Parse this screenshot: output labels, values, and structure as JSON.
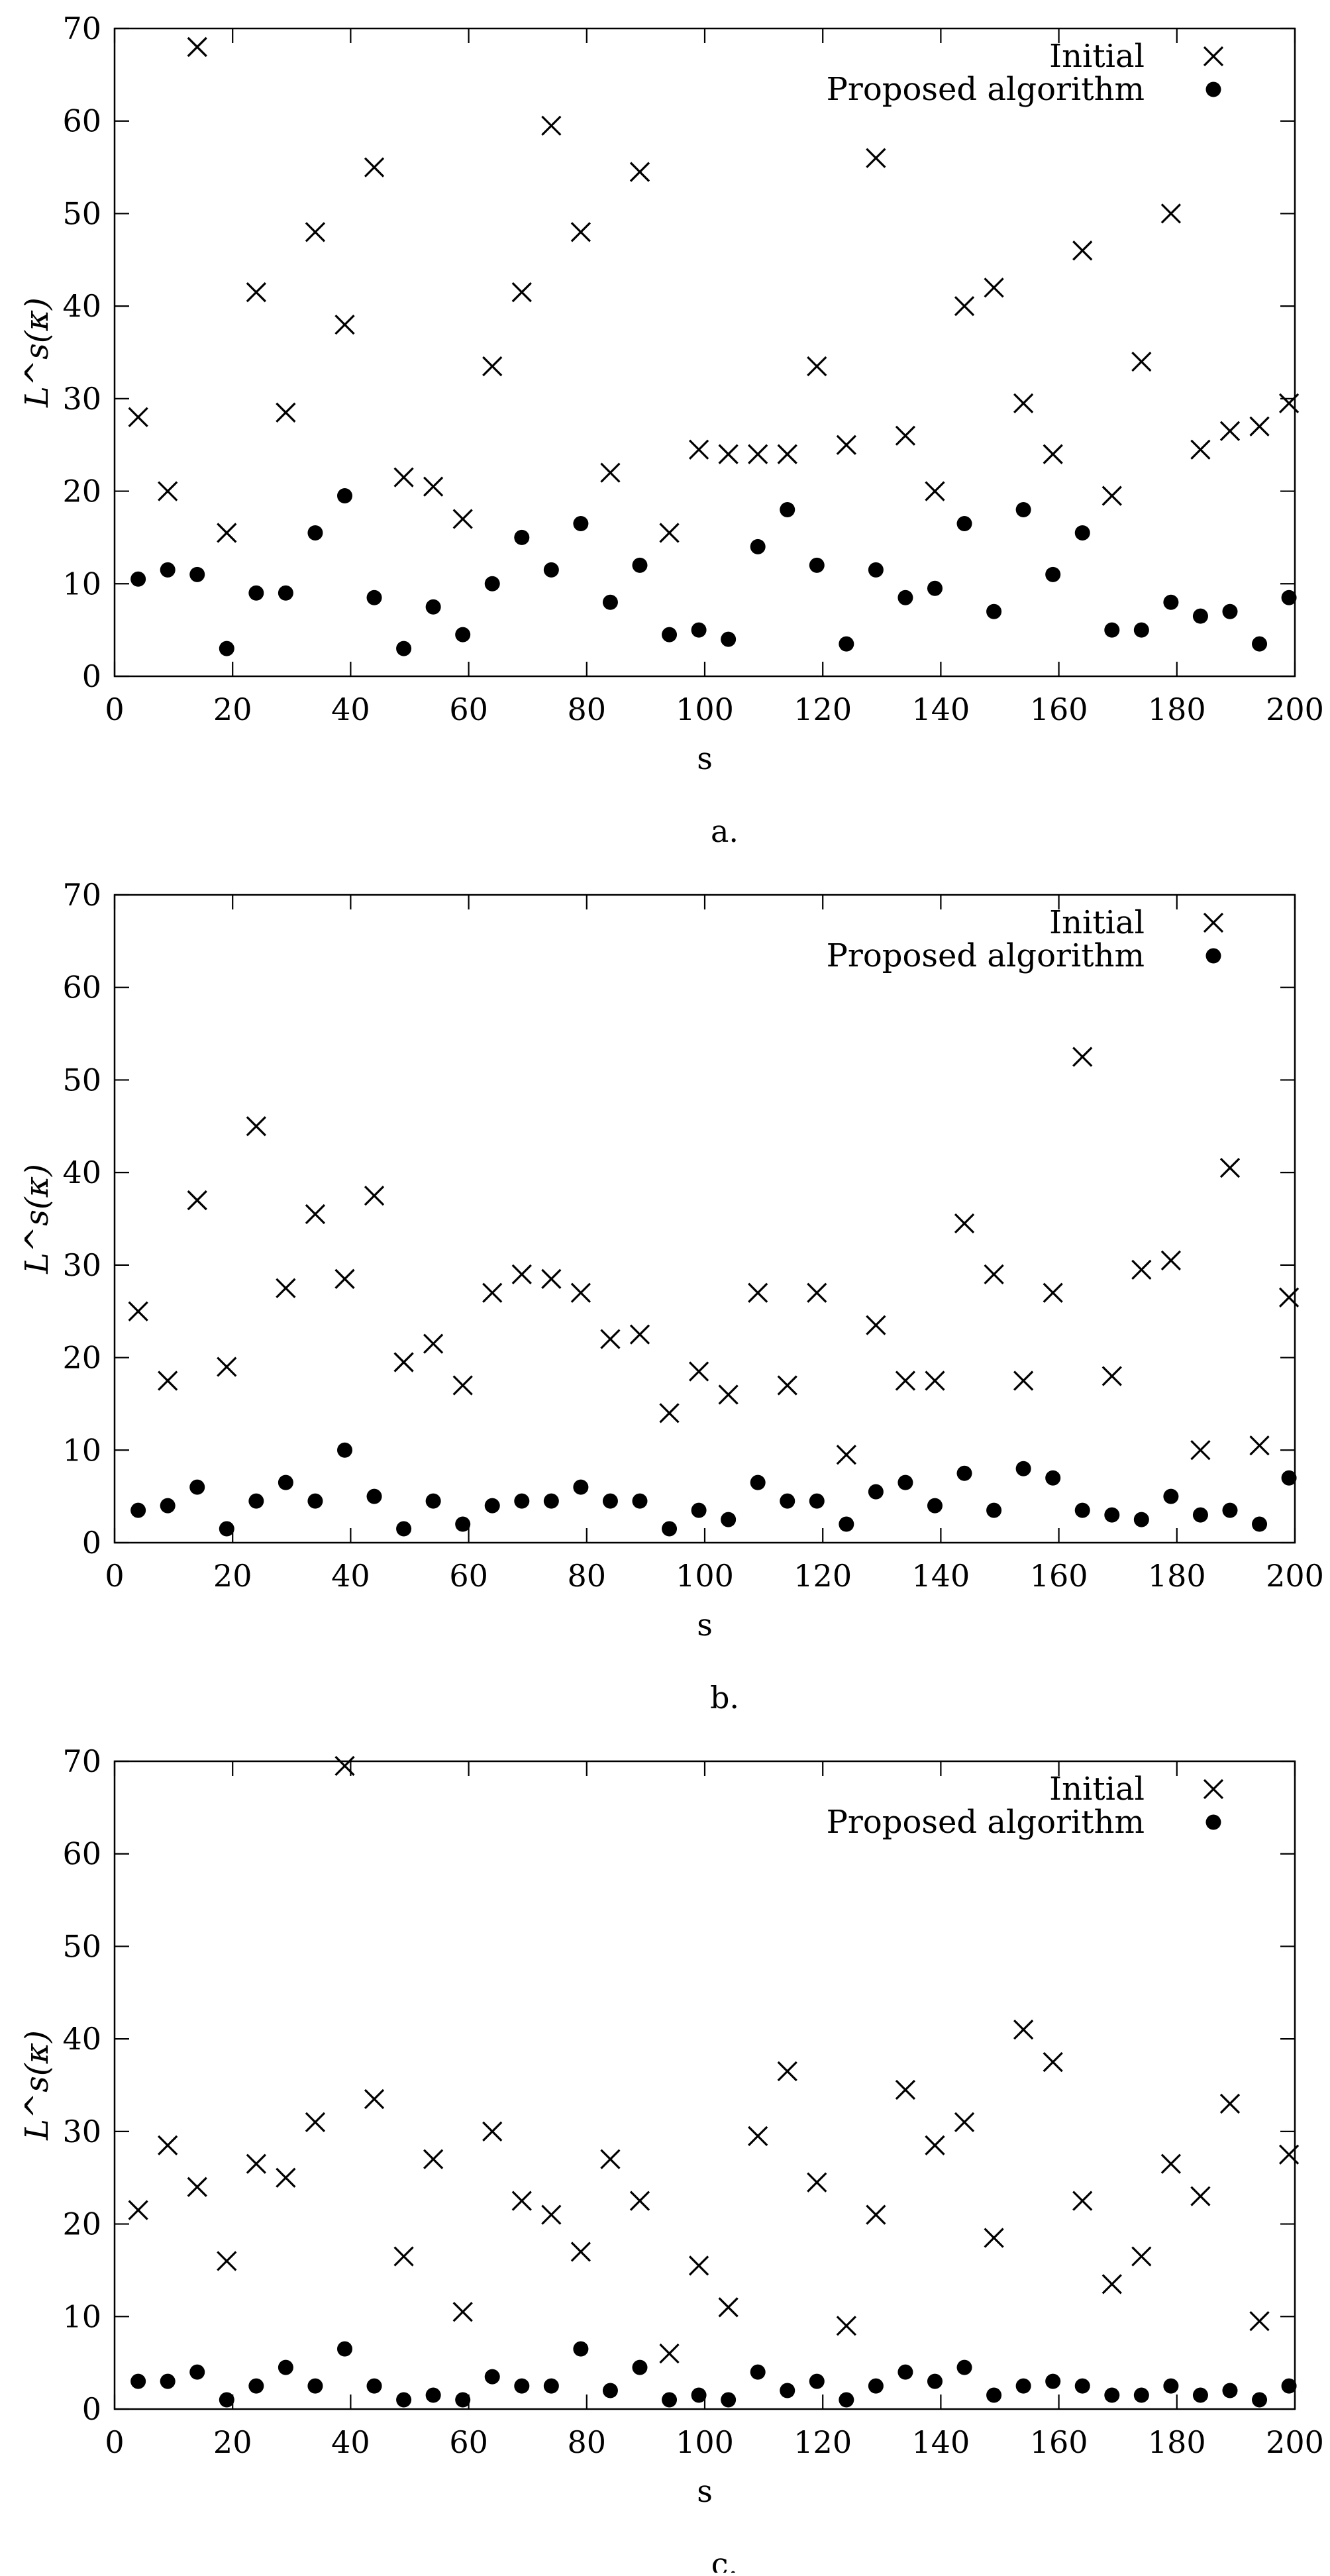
{
  "chart_data": [
    {
      "type": "scatter",
      "caption": "a.",
      "xlabel": "s",
      "ylabel": "L^s(κ)",
      "xlim": [
        0,
        200
      ],
      "ylim": [
        0,
        70
      ],
      "xticks": [
        0,
        20,
        40,
        60,
        80,
        100,
        120,
        140,
        160,
        180,
        200
      ],
      "yticks": [
        0,
        10,
        20,
        30,
        40,
        50,
        60,
        70
      ],
      "legend_position": "top-right",
      "x": [
        4,
        9,
        14,
        19,
        24,
        29,
        34,
        39,
        44,
        49,
        54,
        59,
        64,
        69,
        74,
        79,
        84,
        89,
        94,
        99,
        104,
        109,
        114,
        119,
        124,
        129,
        134,
        139,
        144,
        149,
        154,
        159,
        164,
        169,
        174,
        179,
        184,
        189,
        194,
        199
      ],
      "series": [
        {
          "name": "Initial",
          "marker": "cross",
          "values": [
            28,
            20,
            68,
            15.5,
            41.5,
            28.5,
            48,
            38,
            55,
            21.5,
            20.5,
            17,
            33.5,
            41.5,
            59.5,
            48,
            22,
            54.5,
            15.5,
            24.5,
            24,
            24,
            24,
            33.5,
            25,
            56,
            26,
            20,
            40,
            42,
            29.5,
            24,
            46,
            19.5,
            34,
            50,
            24.5,
            26.5,
            27,
            29.5
          ]
        },
        {
          "name": "Proposed algorithm",
          "marker": "dot",
          "values": [
            10.5,
            11.5,
            11,
            3,
            9,
            9,
            15.5,
            19.5,
            8.5,
            3,
            7.5,
            4.5,
            10,
            15,
            11.5,
            16.5,
            8,
            12,
            4.5,
            5,
            4,
            14,
            18,
            12,
            3.5,
            11.5,
            8.5,
            9.5,
            16.5,
            7,
            18,
            11,
            15.5,
            5,
            5,
            8,
            6.5,
            7,
            3.5,
            8.5
          ]
        }
      ]
    },
    {
      "type": "scatter",
      "caption": "b.",
      "xlabel": "s",
      "ylabel": "L^s(κ)",
      "xlim": [
        0,
        200
      ],
      "ylim": [
        0,
        70
      ],
      "xticks": [
        0,
        20,
        40,
        60,
        80,
        100,
        120,
        140,
        160,
        180,
        200
      ],
      "yticks": [
        0,
        10,
        20,
        30,
        40,
        50,
        60,
        70
      ],
      "legend_position": "top-right",
      "x": [
        4,
        9,
        14,
        19,
        24,
        29,
        34,
        39,
        44,
        49,
        54,
        59,
        64,
        69,
        74,
        79,
        84,
        89,
        94,
        99,
        104,
        109,
        114,
        119,
        124,
        129,
        134,
        139,
        144,
        149,
        154,
        159,
        164,
        169,
        174,
        179,
        184,
        189,
        194,
        199
      ],
      "series": [
        {
          "name": "Initial",
          "marker": "cross",
          "values": [
            25,
            17.5,
            37,
            19,
            45,
            27.5,
            35.5,
            28.5,
            37.5,
            19.5,
            21.5,
            17,
            27,
            29,
            28.5,
            27,
            22,
            22.5,
            14,
            18.5,
            16,
            27,
            17,
            27,
            9.5,
            23.5,
            17.5,
            17.5,
            34.5,
            29,
            17.5,
            27,
            52.5,
            18,
            29.5,
            30.5,
            10,
            40.5,
            10.5,
            26.5
          ]
        },
        {
          "name": "Proposed algorithm",
          "marker": "dot",
          "values": [
            3.5,
            4,
            6,
            1.5,
            4.5,
            6.5,
            4.5,
            10,
            5,
            1.5,
            4.5,
            2,
            4,
            4.5,
            4.5,
            6,
            4.5,
            4.5,
            1.5,
            3.5,
            2.5,
            6.5,
            4.5,
            4.5,
            2,
            5.5,
            6.5,
            4,
            7.5,
            3.5,
            8,
            7,
            3.5,
            3,
            2.5,
            5,
            3,
            3.5,
            2,
            7
          ]
        }
      ]
    },
    {
      "type": "scatter",
      "caption": "c.",
      "xlabel": "s",
      "ylabel": "L^s(κ)",
      "xlim": [
        0,
        200
      ],
      "ylim": [
        0,
        70
      ],
      "xticks": [
        0,
        20,
        40,
        60,
        80,
        100,
        120,
        140,
        160,
        180,
        200
      ],
      "yticks": [
        0,
        10,
        20,
        30,
        40,
        50,
        60,
        70
      ],
      "legend_position": "top-right",
      "x": [
        4,
        9,
        14,
        19,
        24,
        29,
        34,
        39,
        44,
        49,
        54,
        59,
        64,
        69,
        74,
        79,
        84,
        89,
        94,
        99,
        104,
        109,
        114,
        119,
        124,
        129,
        134,
        139,
        144,
        149,
        154,
        159,
        164,
        169,
        174,
        179,
        184,
        189,
        194,
        199
      ],
      "series": [
        {
          "name": "Initial",
          "marker": "cross",
          "values": [
            21.5,
            28.5,
            24,
            16,
            26.5,
            25,
            31,
            69.5,
            33.5,
            16.5,
            27,
            10.5,
            30,
            22.5,
            21,
            17,
            27,
            22.5,
            6,
            15.5,
            11,
            29.5,
            36.5,
            24.5,
            9,
            21,
            34.5,
            28.5,
            31,
            18.5,
            41,
            37.5,
            22.5,
            13.5,
            16.5,
            26.5,
            23,
            33,
            9.5,
            27.5
          ]
        },
        {
          "name": "Proposed algorithm",
          "marker": "dot",
          "values": [
            3,
            3,
            4,
            1,
            2.5,
            4.5,
            2.5,
            6.5,
            2.5,
            1,
            1.5,
            1,
            3.5,
            2.5,
            2.5,
            6.5,
            2,
            4.5,
            1,
            1.5,
            1,
            4,
            2,
            3,
            1,
            2.5,
            4,
            3,
            4.5,
            1.5,
            2.5,
            3,
            2.5,
            1.5,
            1.5,
            2.5,
            1.5,
            2,
            1,
            2.5
          ]
        }
      ]
    }
  ]
}
